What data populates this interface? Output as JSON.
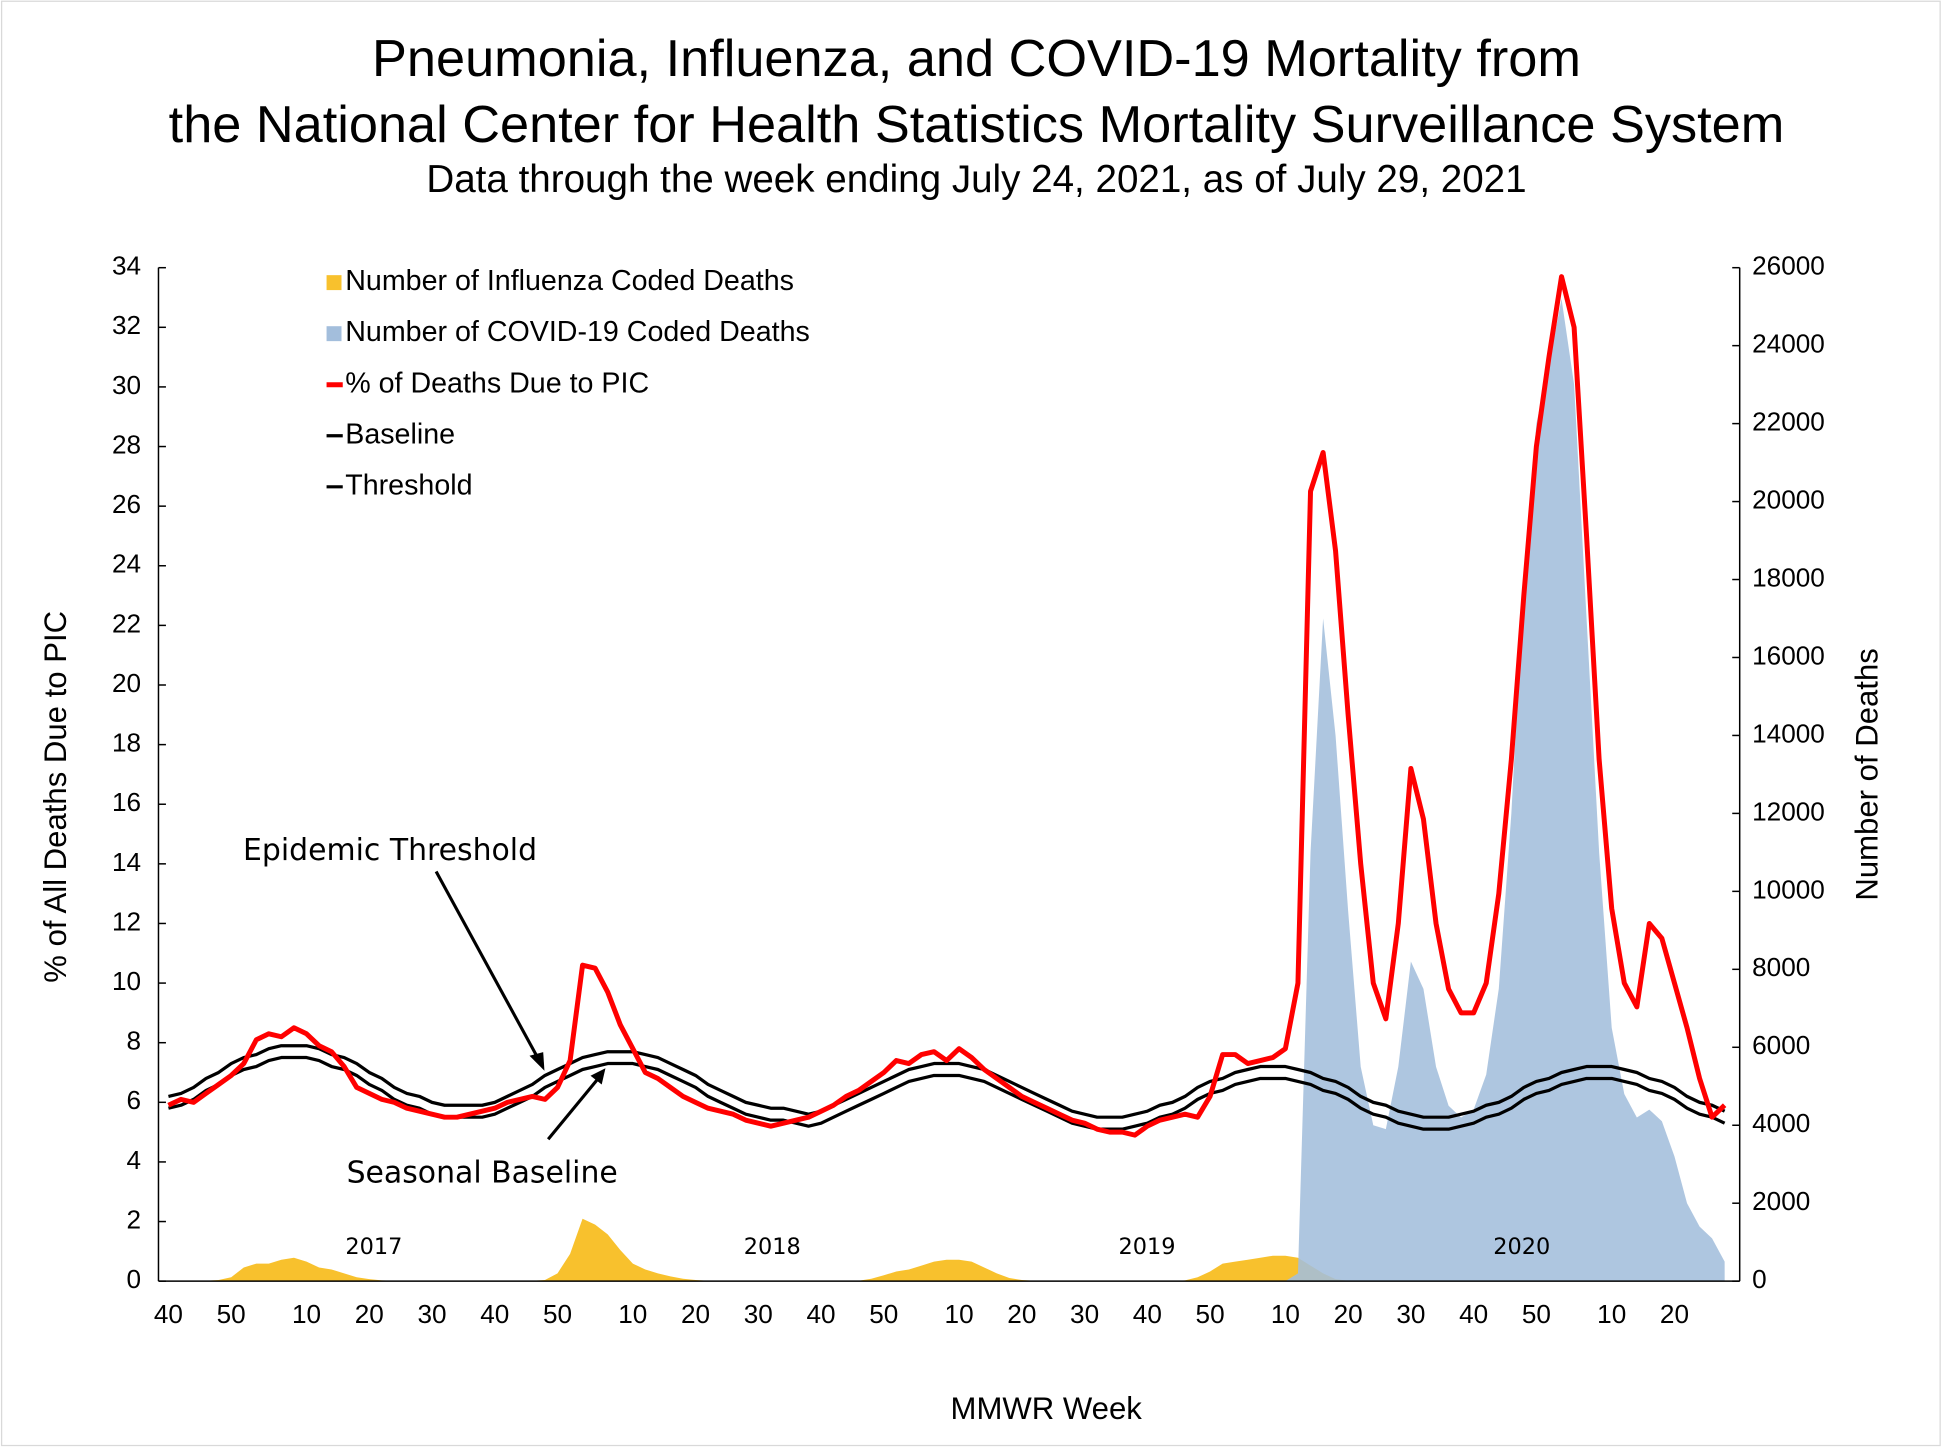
{
  "chart_data": {
    "type": "line",
    "title": [
      "Pneumonia, Influenza, and COVID-19 Mortality from",
      "the National Center for Health Statistics Mortality Surveillance System"
    ],
    "subtitle": "Data through the week ending July 24, 2021, as of July 29, 2021",
    "x_label": "MMWR Week",
    "y_label": "% of All Deaths Due to PIC",
    "y2_label": "Number of Deaths",
    "annotations": [
      "Epidemic Threshold",
      "Seasonal Baseline"
    ],
    "season_labels": [
      "2017",
      "2018",
      "2019",
      "2020"
    ],
    "legend": "upper left",
    "grid": false,
    "ylim": [
      0,
      34
    ],
    "yticks": [
      0,
      2,
      4,
      6,
      8,
      10,
      12,
      14,
      16,
      18,
      20,
      22,
      24,
      26,
      28,
      30,
      32,
      34
    ],
    "y2lim": [
      0,
      26000
    ],
    "y2ticks": [
      0,
      2000,
      4000,
      6000,
      8000,
      10000,
      12000,
      14000,
      16000,
      18000,
      20000,
      22000,
      24000,
      26000
    ],
    "categories": [
      "40",
      null,
      null,
      null,
      null,
      "50",
      null,
      null,
      null,
      null,
      null,
      "10",
      null,
      null,
      null,
      null,
      "20",
      null,
      null,
      null,
      null,
      "30",
      null,
      null,
      null,
      null,
      "40",
      null,
      null,
      null,
      null,
      "50",
      null,
      null,
      null,
      null,
      null,
      "10",
      null,
      null,
      null,
      null,
      "20",
      null,
      null,
      null,
      null,
      "30",
      null,
      null,
      null,
      null,
      "40",
      null,
      null,
      null,
      null,
      "50",
      null,
      null,
      null,
      null,
      null,
      "10",
      null,
      null,
      null,
      null,
      "20",
      null,
      null,
      null,
      null,
      "30",
      null,
      null,
      null,
      null,
      "40",
      null,
      null,
      null,
      null,
      "50",
      null,
      null,
      null,
      null,
      null,
      "10",
      null,
      null,
      null,
      null,
      "20",
      null,
      null,
      null,
      null,
      "30",
      null,
      null,
      null,
      null,
      "40",
      null,
      null,
      null,
      null,
      "50",
      null,
      null,
      null,
      null,
      null,
      "10",
      null,
      null,
      null,
      null,
      "20",
      null,
      null,
      null,
      null
    ],
    "series": [
      {
        "name": "Number of Influenza Coded Deaths",
        "style": "area",
        "axis": "y2",
        "color": "#f8c12d",
        "values": [
          0,
          0,
          0,
          10,
          30,
          100,
          350,
          450,
          450,
          550,
          600,
          500,
          350,
          300,
          200,
          100,
          50,
          20,
          10,
          10,
          0,
          0,
          0,
          0,
          0,
          0,
          0,
          0,
          0,
          10,
          30,
          200,
          700,
          1600,
          1450,
          1200,
          800,
          450,
          300,
          200,
          120,
          60,
          30,
          10,
          0,
          0,
          0,
          0,
          0,
          0,
          0,
          0,
          0,
          0,
          0,
          10,
          60,
          150,
          250,
          300,
          400,
          500,
          550,
          550,
          500,
          350,
          200,
          80,
          30,
          10,
          0,
          0,
          0,
          0,
          0,
          0,
          0,
          0,
          0,
          0,
          0,
          20,
          100,
          250,
          450,
          500,
          550,
          600,
          650,
          650,
          600,
          400,
          200,
          50,
          10,
          0,
          0,
          0,
          0,
          0,
          0,
          0,
          0,
          0,
          0,
          0,
          0,
          0,
          0,
          0,
          0,
          0,
          0,
          0,
          0,
          0,
          0,
          0,
          0,
          0,
          0,
          0,
          0,
          0,
          0
        ]
      },
      {
        "name": "Number of COVID-19 Coded Deaths",
        "style": "area",
        "axis": "y2",
        "color": "#a3bedc",
        "values": [
          0,
          0,
          0,
          0,
          0,
          0,
          0,
          0,
          0,
          0,
          0,
          0,
          0,
          0,
          0,
          0,
          0,
          0,
          0,
          0,
          0,
          0,
          0,
          0,
          0,
          0,
          0,
          0,
          0,
          0,
          0,
          0,
          0,
          0,
          0,
          0,
          0,
          0,
          0,
          0,
          0,
          0,
          0,
          0,
          0,
          0,
          0,
          0,
          0,
          0,
          0,
          0,
          0,
          0,
          0,
          0,
          0,
          0,
          0,
          0,
          0,
          0,
          0,
          0,
          0,
          0,
          0,
          0,
          0,
          0,
          0,
          0,
          0,
          0,
          0,
          0,
          0,
          0,
          0,
          0,
          0,
          0,
          0,
          0,
          0,
          0,
          0,
          0,
          0,
          0,
          200,
          11000,
          17000,
          14000,
          9500,
          5500,
          4000,
          3900,
          5500,
          8200,
          7500,
          5500,
          4500,
          4200,
          4400,
          5300,
          7500,
          12000,
          18000,
          22000,
          23500,
          25200,
          23000,
          17000,
          11000,
          6500,
          4800,
          4200,
          4400,
          4100,
          3200,
          2000,
          1400,
          1100,
          500
        ]
      },
      {
        "name": "% of Deaths Due to PIC",
        "style": "line",
        "color": "#ff0000",
        "values": [
          5.9,
          6.1,
          6.0,
          6.3,
          6.6,
          6.9,
          7.3,
          8.1,
          8.3,
          8.2,
          8.5,
          8.3,
          7.9,
          7.7,
          7.2,
          6.5,
          6.3,
          6.1,
          6.0,
          5.8,
          5.7,
          5.6,
          5.5,
          5.5,
          5.6,
          5.7,
          5.8,
          6.0,
          6.1,
          6.2,
          6.1,
          6.5,
          7.4,
          10.6,
          10.5,
          9.7,
          8.6,
          7.8,
          7.0,
          6.8,
          6.5,
          6.2,
          6.0,
          5.8,
          5.7,
          5.6,
          5.4,
          5.3,
          5.2,
          5.3,
          5.4,
          5.5,
          5.7,
          5.9,
          6.2,
          6.4,
          6.7,
          7.0,
          7.4,
          7.3,
          7.6,
          7.7,
          7.4,
          7.8,
          7.5,
          7.1,
          6.8,
          6.5,
          6.2,
          6.0,
          5.8,
          5.6,
          5.4,
          5.3,
          5.1,
          5.0,
          5.0,
          4.9,
          5.2,
          5.4,
          5.5,
          5.6,
          5.5,
          6.2,
          7.6,
          7.6,
          7.3,
          7.4,
          7.5,
          7.8,
          10.0,
          26.5,
          27.8,
          24.5,
          19.0,
          14.0,
          10.0,
          8.8,
          12.0,
          17.2,
          15.5,
          12.0,
          9.8,
          9.0,
          9.0,
          10.0,
          13.0,
          17.5,
          23.0,
          28.0,
          31.0,
          33.7,
          32.0,
          25.0,
          17.5,
          12.5,
          10.0,
          9.2,
          12.0,
          11.5,
          10.0,
          8.5,
          6.8,
          5.5,
          5.9
        ]
      },
      {
        "name": "Baseline",
        "style": "line",
        "color": "#000000",
        "values": [
          5.8,
          5.9,
          6.1,
          6.4,
          6.6,
          6.9,
          7.1,
          7.2,
          7.4,
          7.5,
          7.5,
          7.5,
          7.4,
          7.2,
          7.1,
          6.9,
          6.6,
          6.4,
          6.1,
          5.9,
          5.8,
          5.6,
          5.5,
          5.5,
          5.5,
          5.5,
          5.6,
          5.8,
          6.0,
          6.2,
          6.5,
          6.7,
          6.9,
          7.1,
          7.2,
          7.3,
          7.3,
          7.3,
          7.2,
          7.1,
          6.9,
          6.7,
          6.5,
          6.2,
          6.0,
          5.8,
          5.6,
          5.5,
          5.4,
          5.4,
          5.3,
          5.2,
          5.3,
          5.5,
          5.7,
          5.9,
          6.1,
          6.3,
          6.5,
          6.7,
          6.8,
          6.9,
          6.9,
          6.9,
          6.8,
          6.7,
          6.5,
          6.3,
          6.1,
          5.9,
          5.7,
          5.5,
          5.3,
          5.2,
          5.1,
          5.1,
          5.1,
          5.2,
          5.3,
          5.5,
          5.6,
          5.8,
          6.1,
          6.3,
          6.4,
          6.6,
          6.7,
          6.8,
          6.8,
          6.8,
          6.7,
          6.6,
          6.4,
          6.3,
          6.1,
          5.8,
          5.6,
          5.5,
          5.3,
          5.2,
          5.1,
          5.1,
          5.1,
          5.2,
          5.3,
          5.5,
          5.6,
          5.8,
          6.1,
          6.3,
          6.4,
          6.6,
          6.7,
          6.8,
          6.8,
          6.8,
          6.7,
          6.6,
          6.4,
          6.3,
          6.1,
          5.8,
          5.6,
          5.5,
          5.3
        ]
      },
      {
        "name": "Threshold",
        "style": "line",
        "color": "#000000",
        "values": [
          6.2,
          6.3,
          6.5,
          6.8,
          7.0,
          7.3,
          7.5,
          7.6,
          7.8,
          7.9,
          7.9,
          7.9,
          7.8,
          7.6,
          7.5,
          7.3,
          7.0,
          6.8,
          6.5,
          6.3,
          6.2,
          6.0,
          5.9,
          5.9,
          5.9,
          5.9,
          6.0,
          6.2,
          6.4,
          6.6,
          6.9,
          7.1,
          7.3,
          7.5,
          7.6,
          7.7,
          7.7,
          7.7,
          7.6,
          7.5,
          7.3,
          7.1,
          6.9,
          6.6,
          6.4,
          6.2,
          6.0,
          5.9,
          5.8,
          5.8,
          5.7,
          5.6,
          5.7,
          5.9,
          6.1,
          6.3,
          6.5,
          6.7,
          6.9,
          7.1,
          7.2,
          7.3,
          7.3,
          7.3,
          7.2,
          7.1,
          6.9,
          6.7,
          6.5,
          6.3,
          6.1,
          5.9,
          5.7,
          5.6,
          5.5,
          5.5,
          5.5,
          5.6,
          5.7,
          5.9,
          6.0,
          6.2,
          6.5,
          6.7,
          6.8,
          7.0,
          7.1,
          7.2,
          7.2,
          7.2,
          7.1,
          7.0,
          6.8,
          6.7,
          6.5,
          6.2,
          6.0,
          5.9,
          5.7,
          5.6,
          5.5,
          5.5,
          5.5,
          5.6,
          5.7,
          5.9,
          6.0,
          6.2,
          6.5,
          6.7,
          6.8,
          7.0,
          7.1,
          7.2,
          7.2,
          7.2,
          7.1,
          7.0,
          6.8,
          6.7,
          6.5,
          6.2,
          6.0,
          5.9,
          5.7
        ]
      }
    ]
  }
}
